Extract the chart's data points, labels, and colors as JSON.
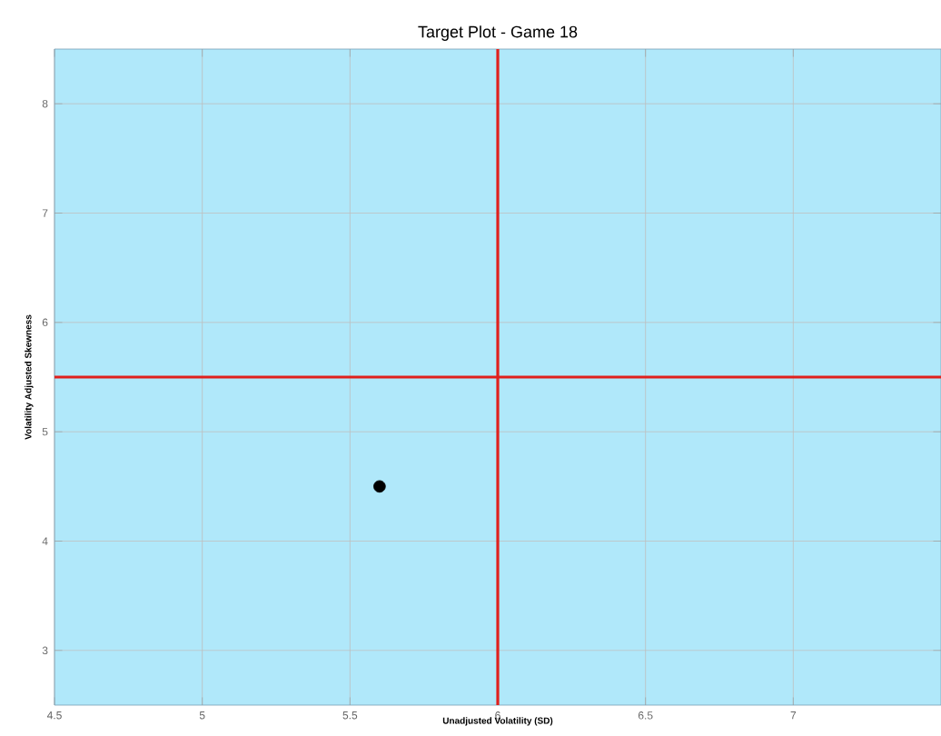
{
  "chart_data": {
    "type": "scatter",
    "title": "Target Plot - Game 18",
    "xlabel": "Unadjusted Volatility (SD)",
    "ylabel": "Volatility Adjusted Skewness",
    "x": [
      5.6
    ],
    "values": [
      4.5
    ],
    "color": "#000000",
    "marker": "circle",
    "xlim": [
      4.5,
      7.5
    ],
    "ylim": [
      2.5,
      8.5
    ],
    "xticks": [
      4.5,
      5,
      5.5,
      6,
      6.5,
      7
    ],
    "yticks": [
      3,
      4,
      5,
      6,
      7,
      8
    ],
    "grid": true,
    "ref_lines": [
      {
        "axis": "x",
        "value": 6,
        "color": "#e0201c"
      },
      {
        "axis": "y",
        "value": 5.5,
        "color": "#e0201c"
      }
    ]
  }
}
